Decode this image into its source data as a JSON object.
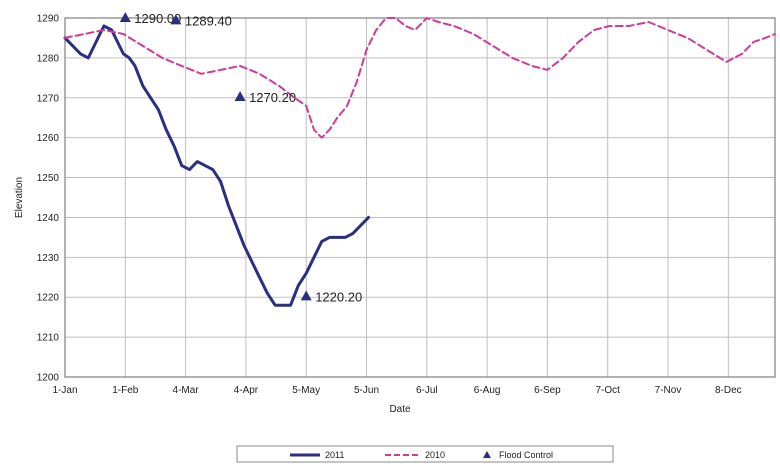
{
  "chart_data": {
    "type": "line",
    "title": "",
    "xlabel": "Date",
    "ylabel": "Elevation",
    "ylim": [
      1200,
      1290
    ],
    "yticks": [
      1200,
      1210,
      1220,
      1230,
      1240,
      1250,
      1260,
      1270,
      1280,
      1290
    ],
    "xlim": [
      0,
      365
    ],
    "xtick_labels": [
      "1-Jan",
      "1-Feb",
      "4-Mar",
      "4-Apr",
      "5-May",
      "5-Jun",
      "6-Jul",
      "6-Aug",
      "6-Sep",
      "7-Oct",
      "7-Nov",
      "8-Dec"
    ],
    "xtick_days": [
      0,
      31,
      62,
      93,
      124,
      155,
      186,
      217,
      248,
      279,
      310,
      341
    ],
    "grid": true,
    "legend_position": "bottom",
    "series": [
      {
        "name": "2011",
        "color": "#2b2f80",
        "style": "solid",
        "x": [
          0,
          4,
          8,
          12,
          16,
          20,
          24,
          27,
          30,
          33,
          36,
          40,
          44,
          48,
          52,
          56,
          60,
          64,
          68,
          72,
          76,
          80,
          84,
          88,
          92,
          96,
          100,
          104,
          108,
          112,
          116,
          120,
          124,
          128,
          132,
          136,
          140,
          144,
          148,
          152,
          156
        ],
        "y": [
          1285,
          1283,
          1281,
          1280,
          1284,
          1288,
          1287,
          1284,
          1281,
          1280,
          1278,
          1273,
          1270,
          1267,
          1262,
          1258,
          1253,
          1252,
          1254,
          1253,
          1252,
          1249,
          1243,
          1238,
          1233,
          1229,
          1225,
          1221,
          1218,
          1218,
          1218,
          1223,
          1226,
          1230,
          1234,
          1235,
          1235,
          1235,
          1236,
          1238,
          1240
        ]
      },
      {
        "name": "2010",
        "color": "#d23a9a",
        "style": "dashed",
        "x": [
          0,
          10,
          20,
          30,
          40,
          50,
          60,
          70,
          80,
          90,
          100,
          110,
          118,
          124,
          128,
          132,
          136,
          140,
          145,
          150,
          155,
          160,
          165,
          170,
          175,
          180,
          186,
          192,
          200,
          210,
          220,
          230,
          240,
          248,
          256,
          264,
          272,
          280,
          290,
          300,
          310,
          320,
          330,
          340,
          348,
          354,
          360,
          365
        ],
        "y": [
          1285,
          1286,
          1287,
          1286,
          1283,
          1280,
          1278,
          1276,
          1277,
          1278,
          1276,
          1273,
          1270,
          1268,
          1262,
          1260,
          1262,
          1265,
          1268,
          1274,
          1282,
          1287,
          1290,
          1290,
          1288,
          1287,
          1290,
          1289,
          1288,
          1286,
          1283,
          1280,
          1278,
          1277,
          1280,
          1284,
          1287,
          1288,
          1288,
          1289,
          1287,
          1285,
          1282,
          1279,
          1281,
          1284,
          1285,
          1286
        ]
      },
      {
        "name": "Flood Control",
        "color": "#2b2f80",
        "style": "marker",
        "x": [
          31,
          57,
          90,
          124
        ],
        "y": [
          1290.0,
          1289.4,
          1270.2,
          1220.2
        ],
        "labels": [
          "1290.00",
          "1289.40",
          "1270.20",
          "1220.20"
        ]
      }
    ]
  }
}
